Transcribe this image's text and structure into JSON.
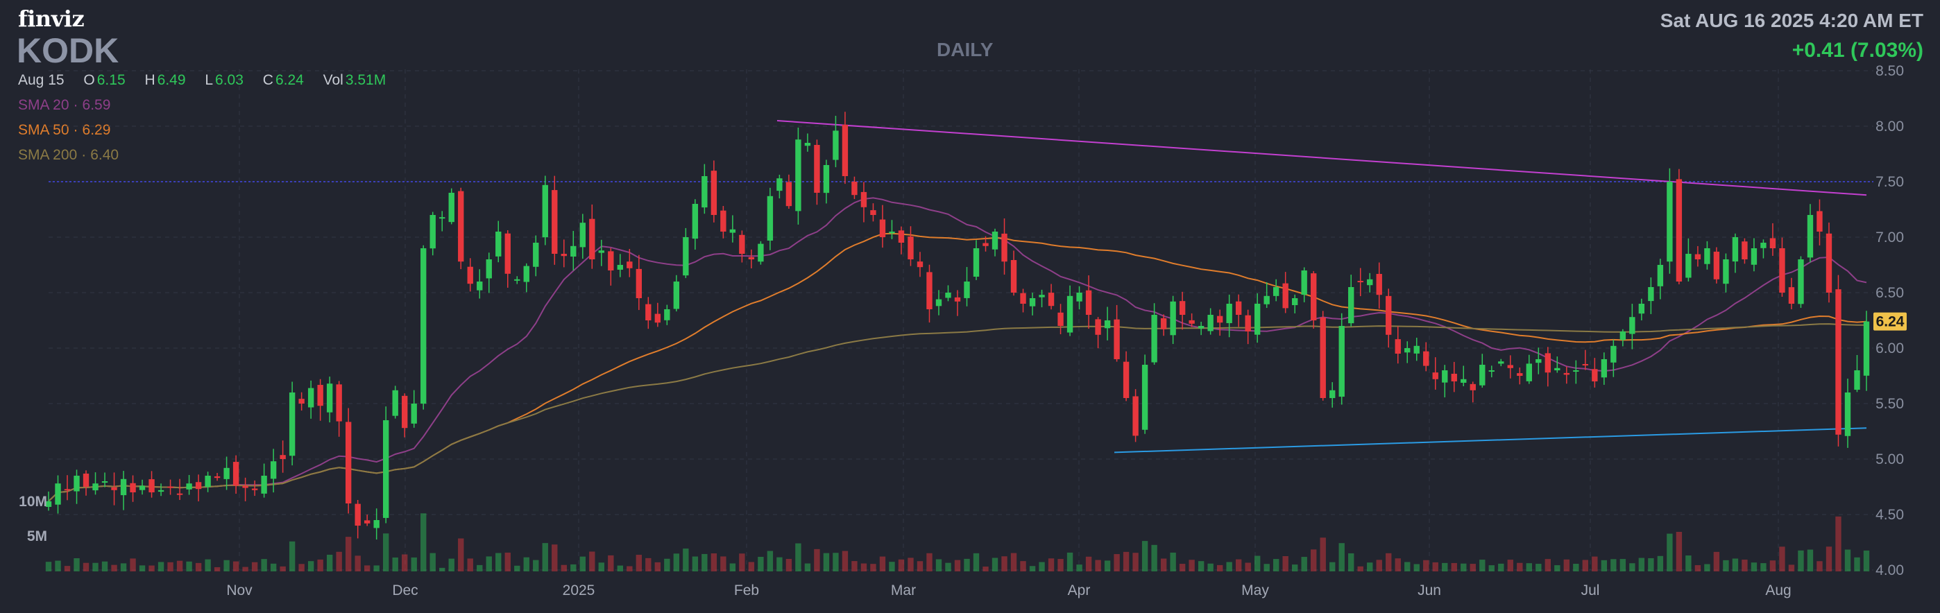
{
  "header": {
    "logo": "finviz",
    "ticker": "KODK",
    "period": "DAILY",
    "datetime": "Sat AUG 16 2025 4:20 AM ET",
    "change": "+0.41 (7.03%)"
  },
  "ohlc": {
    "date": "Aug 15",
    "open_label": "O",
    "open": "6.15",
    "high_label": "H",
    "high": "6.49",
    "low_label": "L",
    "low": "6.03",
    "close_label": "C",
    "close": "6.24",
    "vol_label": "Vol",
    "vol": "3.51M"
  },
  "indicators": {
    "sma20": {
      "label": "SMA 20",
      "value": "6.59",
      "color": "#8e3f89"
    },
    "sma50": {
      "label": "SMA 50",
      "value": "6.29",
      "color": "#e07d2c"
    },
    "sma200": {
      "label": "SMA 200",
      "value": "6.40",
      "color": "#8b7a45"
    }
  },
  "colors": {
    "up": "#2fc85a",
    "down": "#e8373d",
    "background": "#22252f",
    "grid": "#333846"
  },
  "chart_data": {
    "type": "candlestick",
    "y_ticks": [
      "8.50",
      "8.00",
      "7.50",
      "7.00",
      "6.50",
      "6.00",
      "5.50",
      "5.00",
      "4.50",
      "4.00"
    ],
    "ylim": [
      4.0,
      8.5
    ],
    "x_ticks": [
      "Nov",
      "Dec",
      "2025",
      "Feb",
      "Mar",
      "Apr",
      "May",
      "Jun",
      "Jul",
      "Aug"
    ],
    "volume_ticks": [
      "10M",
      "5M"
    ],
    "last_price": "6.24",
    "horizontal_line": {
      "value": 7.5,
      "color": "#3b3fb8"
    },
    "trendlines": [
      {
        "name": "resistance",
        "color": "#c340d0",
        "from": [
          "Feb 6",
          8.05
        ],
        "to": [
          "Aug 15",
          7.38
        ]
      },
      {
        "name": "support",
        "color": "#2b9be3",
        "from": [
          "Apr 8",
          5.06
        ],
        "to": [
          "Aug 15",
          5.28
        ]
      }
    ],
    "closes": [
      4.62,
      4.78,
      4.72,
      4.85,
      4.75,
      4.78,
      4.8,
      4.72,
      4.82,
      4.7,
      4.76,
      4.7,
      4.72,
      4.74,
      4.68,
      4.78,
      4.73,
      4.85,
      4.83,
      4.92,
      4.76,
      4.74,
      4.72,
      4.85,
      4.98,
      5.0,
      5.6,
      5.5,
      5.64,
      5.48,
      5.68,
      5.34,
      4.6,
      4.4,
      4.42,
      4.45,
      5.35,
      5.62,
      5.28,
      5.5,
      6.9,
      7.2,
      7.18,
      7.4,
      6.78,
      6.58,
      6.6,
      6.8,
      7.05,
      6.67,
      6.62,
      6.74,
      6.95,
      7.47,
      6.85,
      6.83,
      6.92,
      7.13,
      6.8,
      6.88,
      6.7,
      6.75,
      6.72,
      6.45,
      6.25,
      6.23,
      6.35,
      6.6,
      7.0,
      7.3,
      7.55,
      7.2,
      7.05,
      7.07,
      6.85,
      6.8,
      6.94,
      7.37,
      7.53,
      7.28,
      7.88,
      7.85,
      7.4,
      7.65,
      7.96,
      7.55,
      7.38,
      7.27,
      7.2,
      7.0,
      7.05,
      6.95,
      6.8,
      6.73,
      6.35,
      6.44,
      6.5,
      6.42,
      6.6,
      6.9,
      6.92,
      7.05,
      6.78,
      6.5,
      6.4,
      6.45,
      6.48,
      6.38,
      6.2,
      6.47,
      6.5,
      6.3,
      6.12,
      6.25,
      5.9,
      5.55,
      5.21,
      5.85,
      6.3,
      6.17,
      6.42,
      6.3,
      6.22,
      6.2,
      6.3,
      6.23,
      6.4,
      6.3,
      6.15,
      6.4,
      6.47,
      6.55,
      6.36,
      6.45,
      6.7,
      6.25,
      5.55,
      5.62,
      6.2,
      6.55,
      6.6,
      6.62,
      6.48,
      6.12,
      5.95,
      6.0,
      6.02,
      5.84,
      5.72,
      5.8,
      5.7,
      5.72,
      5.62,
      5.85,
      5.8,
      5.88,
      5.82,
      5.75,
      5.86,
      5.9,
      5.78,
      5.82,
      5.76,
      5.8,
      5.85,
      5.7,
      5.9,
      6.02,
      6.15,
      6.28,
      6.4,
      6.55,
      6.75,
      7.5,
      6.6,
      6.85,
      6.8,
      6.9,
      6.62,
      6.8,
      7.0,
      6.8,
      6.9,
      6.95,
      6.9,
      6.5,
      6.4,
      6.8,
      7.2,
      7.05,
      6.5,
      5.22,
      5.6,
      5.8,
      6.24
    ],
    "volume_scale": "10M",
    "visible_range": [
      "Oct 2024",
      "Aug 15 2025"
    ]
  }
}
